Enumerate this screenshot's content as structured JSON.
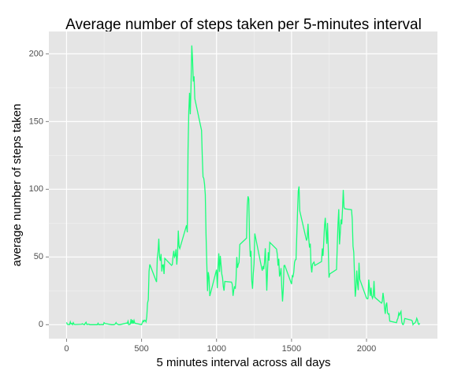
{
  "chart_data": {
    "type": "line",
    "title": "Average number of steps taken per 5-minutes interval",
    "xlabel": "5 minutes interval across all days",
    "ylabel": "average number of steps taken",
    "color": "#1aff7a",
    "grid": true,
    "minor_grid": true,
    "xlim": [
      -118,
      2473
    ],
    "ylim": [
      -10.3,
      216.5
    ],
    "xticks": [
      0,
      500,
      1000,
      1500,
      2000
    ],
    "yticks": [
      0,
      50,
      100,
      150,
      200
    ],
    "x": [
      0,
      5,
      10,
      15,
      20,
      25,
      30,
      35,
      40,
      45,
      50,
      55,
      100,
      105,
      110,
      115,
      120,
      125,
      130,
      135,
      140,
      145,
      150,
      155,
      200,
      205,
      210,
      215,
      220,
      225,
      230,
      235,
      240,
      245,
      250,
      255,
      300,
      305,
      310,
      315,
      320,
      325,
      330,
      335,
      340,
      345,
      350,
      355,
      400,
      405,
      410,
      415,
      420,
      425,
      430,
      435,
      440,
      445,
      450,
      455,
      500,
      505,
      510,
      515,
      520,
      525,
      530,
      535,
      540,
      545,
      550,
      555,
      600,
      605,
      610,
      615,
      620,
      625,
      630,
      635,
      640,
      645,
      650,
      655,
      700,
      705,
      710,
      715,
      720,
      725,
      730,
      735,
      740,
      745,
      750,
      755,
      800,
      805,
      810,
      815,
      820,
      825,
      830,
      835,
      840,
      845,
      850,
      855,
      900,
      905,
      910,
      915,
      920,
      925,
      930,
      935,
      940,
      945,
      950,
      955,
      1000,
      1005,
      1010,
      1015,
      1020,
      1025,
      1030,
      1035,
      1040,
      1045,
      1050,
      1055,
      1100,
      1105,
      1110,
      1115,
      1120,
      1125,
      1130,
      1135,
      1140,
      1145,
      1150,
      1155,
      1200,
      1205,
      1210,
      1215,
      1220,
      1225,
      1230,
      1235,
      1240,
      1245,
      1250,
      1255,
      1300,
      1305,
      1310,
      1315,
      1320,
      1325,
      1330,
      1335,
      1340,
      1345,
      1350,
      1355,
      1400,
      1405,
      1410,
      1415,
      1420,
      1425,
      1430,
      1435,
      1440,
      1445,
      1450,
      1455,
      1500,
      1505,
      1510,
      1515,
      1520,
      1525,
      1530,
      1535,
      1540,
      1545,
      1550,
      1555,
      1600,
      1605,
      1610,
      1615,
      1620,
      1625,
      1630,
      1635,
      1640,
      1645,
      1650,
      1655,
      1700,
      1705,
      1710,
      1715,
      1720,
      1725,
      1730,
      1735,
      1740,
      1745,
      1750,
      1755,
      1800,
      1805,
      1810,
      1815,
      1820,
      1825,
      1830,
      1835,
      1840,
      1845,
      1850,
      1855,
      1900,
      1905,
      1910,
      1915,
      1920,
      1925,
      1930,
      1935,
      1940,
      1945,
      1950,
      1955,
      2000,
      2005,
      2010,
      2015,
      2020,
      2025,
      2030,
      2035,
      2040,
      2045,
      2050,
      2055,
      2100,
      2105,
      2110,
      2115,
      2120,
      2125,
      2130,
      2135,
      2140,
      2145,
      2150,
      2155,
      2200,
      2205,
      2210,
      2215,
      2220,
      2225,
      2230,
      2235,
      2240,
      2245,
      2250,
      2255,
      2300,
      2305,
      2310,
      2315,
      2320,
      2325,
      2330,
      2335,
      2340,
      2345,
      2350,
      2355
    ],
    "values": [
      1.7,
      0.3,
      0.1,
      0.2,
      0.1,
      2.1,
      0.5,
      0.9,
      0,
      1.5,
      0.3,
      0.1,
      0.3,
      0.7,
      0.2,
      0.3,
      0,
      1.1,
      1.8,
      0.2,
      0.2,
      0.4,
      0.3,
      0,
      0,
      0,
      1.1,
      0,
      0,
      0.1,
      0,
      0.2,
      0,
      0,
      1.5,
      0.9,
      0,
      0,
      0,
      0,
      0.2,
      0.6,
      1.6,
      0.6,
      0.5,
      0.1,
      0,
      0,
      1.2,
      0.9,
      2.6,
      0,
      0.3,
      0.4,
      4.1,
      0.7,
      3.5,
      0.8,
      3.1,
      1.1,
      0,
      1.6,
      3,
      2.2,
      3.3,
      3,
      2.1,
      6.1,
      16,
      18.3,
      39.5,
      44.5,
      31.5,
      49.3,
      53.8,
      63.5,
      50,
      47.1,
      52.2,
      39.3,
      44,
      44.2,
      37.4,
      49,
      43.8,
      44.4,
      50.5,
      54.5,
      49.9,
      51,
      55.7,
      44.3,
      52.3,
      69.5,
      57.8,
      56.2,
      73.4,
      68.2,
      129.4,
      157.5,
      171.2,
      155.4,
      177.3,
      206.2,
      195.9,
      179.6,
      183.4,
      167,
      143.5,
      124,
      109.1,
      108.1,
      103.7,
      96,
      66.2,
      45.2,
      24.8,
      38.8,
      35,
      21.1,
      40.6,
      27,
      42.4,
      52.7,
      38.9,
      50.8,
      44.3,
      37.4,
      34.7,
      28.3,
      25.1,
      31.9,
      31.4,
      29.7,
      21.3,
      25.5,
      28.4,
      26.5,
      33.4,
      50,
      42,
      44.6,
      46,
      59.2,
      63.9,
      87.7,
      94.8,
      92.8,
      63.4,
      50.2,
      54.5,
      32.4,
      26.5,
      37.7,
      45.1,
      67.3,
      42.3,
      39.9,
      43.3,
      41,
      46.2,
      56.4,
      42.8,
      25.1,
      40,
      53.5,
      47.3,
      60.8,
      55.8,
      52,
      43.6,
      48.7,
      35.5,
      37.5,
      41.8,
      27.5,
      17.1,
      26.1,
      43.6,
      43.8,
      30,
      36.1,
      35.5,
      38.8,
      46,
      47.8,
      48.1,
      65.3,
      82.9,
      98.7,
      102.1,
      84,
      62.1,
      64.1,
      74.5,
      63.2,
      56.9,
      59.8,
      43.9,
      38.6,
      44.7,
      45.5,
      46.2,
      43.7,
      46.6,
      56.3,
      50.7,
      61.2,
      72.7,
      78.9,
      68.9,
      59.7,
      75.1,
      56.5,
      34.8,
      37.5,
      40.7,
      58,
      74.7,
      85.3,
      59.3,
      67.8,
      77.7,
      74.2,
      85.3,
      99.5,
      86.6,
      85.6,
      84.9,
      77.8,
      58,
      53.4,
      36.3,
      20.7,
      27.4,
      40,
      30.2,
      25.5,
      45.7,
      33.5,
      19.6,
      19,
      19.3,
      33.3,
      26.8,
      21.2,
      27.3,
      21.3,
      19.5,
      21.3,
      32.3,
      20.2,
      15.9,
      17.2,
      23.5,
      19.2,
      12.5,
      8,
      14.7,
      16.3,
      8.7,
      7.8,
      8.1,
      2.6,
      1.5,
      3.7,
      4.8,
      8.5,
      7.1,
      8.7,
      9.8,
      2.2,
      0.3,
      0.1,
      1.6,
      4.6,
      3.3,
      2.8,
      0,
      0.8,
      1,
      1.6,
      2.6,
      4.7,
      3.3,
      0.6,
      0.2,
      1.1
    ]
  }
}
